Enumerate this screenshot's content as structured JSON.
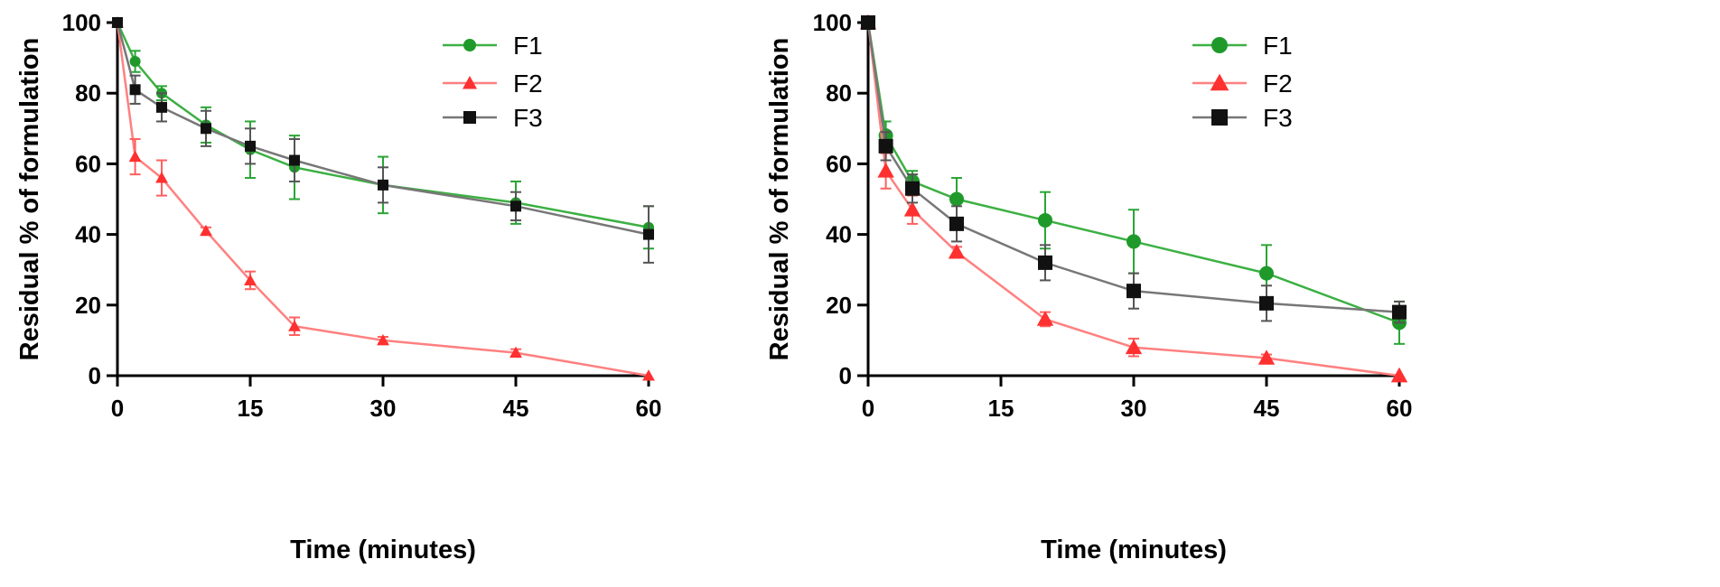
{
  "colors": {
    "F1": "#1f9a2a",
    "F2": "#ff3030",
    "F3": "#111111",
    "axis": "#000000"
  },
  "chart_data": [
    {
      "type": "line",
      "xlabel": "Time (minutes)",
      "ylabel": "Residual % of formulation",
      "xlim": [
        0,
        60
      ],
      "ylim": [
        0,
        100
      ],
      "xticks": [
        "0",
        "15",
        "30",
        "45",
        "60"
      ],
      "yticks": [
        "0",
        "20",
        "40",
        "60",
        "80",
        "100"
      ],
      "legend_position": "top-right",
      "series": [
        {
          "name": "F1",
          "marker": "circle",
          "x": [
            0,
            2,
            5,
            10,
            15,
            20,
            30,
            45,
            60
          ],
          "y": [
            100,
            89,
            80,
            71,
            64,
            59,
            54,
            49,
            42
          ],
          "err": [
            0,
            3,
            2,
            5,
            8,
            9,
            8,
            6,
            6
          ]
        },
        {
          "name": "F2",
          "marker": "triangle",
          "x": [
            0,
            2,
            5,
            10,
            15,
            20,
            30,
            45,
            60
          ],
          "y": [
            100,
            62,
            56,
            41,
            27,
            14,
            10,
            6.5,
            0
          ],
          "err": [
            0,
            5,
            5,
            1,
            2.5,
            2.5,
            1,
            1,
            0
          ]
        },
        {
          "name": "F3",
          "marker": "square",
          "x": [
            0,
            2,
            5,
            10,
            15,
            20,
            30,
            45,
            60
          ],
          "y": [
            100,
            81,
            76,
            70,
            65,
            61,
            54,
            48,
            40
          ],
          "err": [
            0,
            4,
            4,
            5,
            5,
            6,
            5,
            4,
            8
          ]
        }
      ]
    },
    {
      "type": "line",
      "xlabel": "Time (minutes)",
      "ylabel": "Residual % of formulation",
      "xlim": [
        0,
        60
      ],
      "ylim": [
        0,
        100
      ],
      "xticks": [
        "0",
        "15",
        "30",
        "45",
        "60"
      ],
      "yticks": [
        "0",
        "20",
        "40",
        "60",
        "80",
        "100"
      ],
      "legend_position": "top-right",
      "series": [
        {
          "name": "F1",
          "marker": "circle",
          "x": [
            0,
            2,
            5,
            10,
            20,
            30,
            45,
            60
          ],
          "y": [
            100,
            68,
            55,
            50,
            44,
            38,
            29,
            15
          ],
          "err": [
            0,
            4,
            3,
            6,
            8,
            9,
            8,
            6
          ]
        },
        {
          "name": "F2",
          "marker": "triangle",
          "x": [
            0,
            2,
            5,
            10,
            20,
            30,
            45,
            60
          ],
          "y": [
            100,
            58,
            47,
            35,
            16,
            8,
            5,
            0
          ],
          "err": [
            0,
            5,
            4,
            1.5,
            2,
            2.5,
            1,
            0
          ]
        },
        {
          "name": "F3",
          "marker": "square",
          "x": [
            0,
            2,
            5,
            10,
            20,
            30,
            45,
            60
          ],
          "y": [
            100,
            65,
            53,
            43,
            32,
            24,
            20.5,
            18
          ],
          "err": [
            0,
            4,
            4,
            5,
            5,
            5,
            5,
            3
          ]
        }
      ]
    }
  ]
}
